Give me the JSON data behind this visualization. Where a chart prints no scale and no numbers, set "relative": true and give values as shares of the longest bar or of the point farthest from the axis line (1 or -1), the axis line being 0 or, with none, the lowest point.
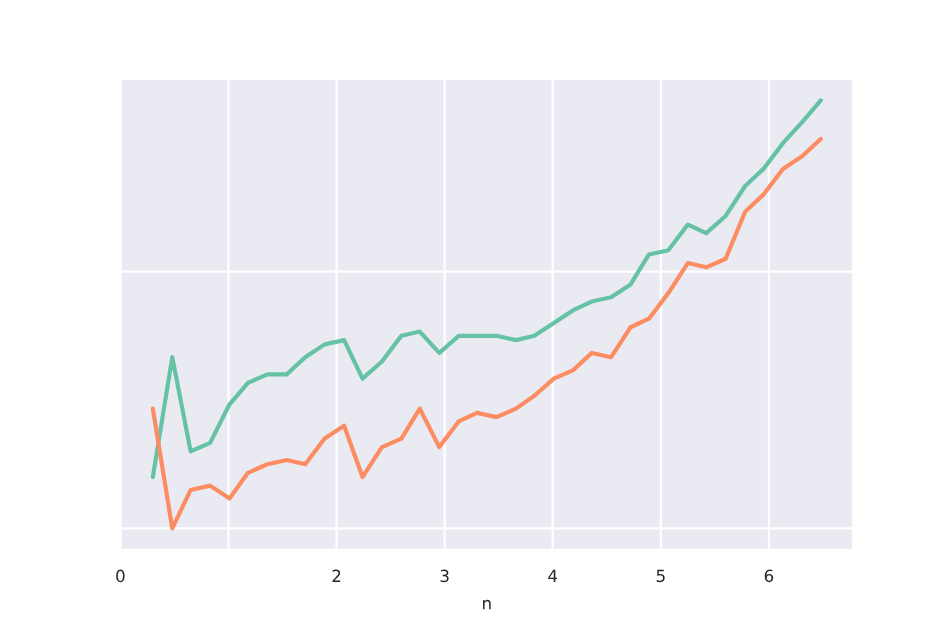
{
  "chart_data": {
    "type": "line",
    "xlabel": "n",
    "relative": true,
    "x": [
      0.3,
      0.48,
      0.65,
      0.83,
      1.01,
      1.18,
      1.36,
      1.54,
      1.71,
      1.89,
      2.07,
      2.24,
      2.42,
      2.6,
      2.77,
      2.95,
      3.13,
      3.3,
      3.48,
      3.66,
      3.83,
      4.01,
      4.19,
      4.36,
      4.54,
      4.72,
      4.89,
      5.07,
      5.25,
      5.42,
      5.6,
      5.78,
      5.95,
      6.13,
      6.31,
      6.48
    ],
    "xlim": [
      0,
      6.78
    ],
    "xticks": [
      0,
      {
        "value": 1,
        "label": null
      },
      2,
      3,
      4,
      5,
      6
    ],
    "tick_labels": "x",
    "grid": true,
    "series": [
      {
        "color": "#66c2a5",
        "values": [
          0.12,
          0.4,
          0.18,
          0.2,
          0.29,
          0.34,
          0.36,
          0.36,
          0.4,
          0.43,
          0.44,
          0.35,
          0.39,
          0.45,
          0.46,
          0.41,
          0.45,
          0.45,
          0.45,
          0.44,
          0.45,
          0.48,
          0.51,
          0.53,
          0.54,
          0.57,
          0.64,
          0.65,
          0.71,
          0.69,
          0.73,
          0.8,
          0.84,
          0.9,
          0.95,
          1
        ]
      },
      {
        "color": "#fc8d62",
        "values": [
          0.28,
          0,
          0.09,
          0.1,
          0.07,
          0.13,
          0.15,
          0.16,
          0.15,
          0.21,
          0.24,
          0.12,
          0.19,
          0.21,
          0.28,
          0.19,
          0.25,
          0.27,
          0.26,
          0.28,
          0.31,
          0.35,
          0.37,
          0.41,
          0.4,
          0.47,
          0.49,
          0.55,
          0.62,
          0.61,
          0.63,
          0.74,
          0.78,
          0.84,
          0.87,
          0.91
        ]
      }
    ]
  }
}
